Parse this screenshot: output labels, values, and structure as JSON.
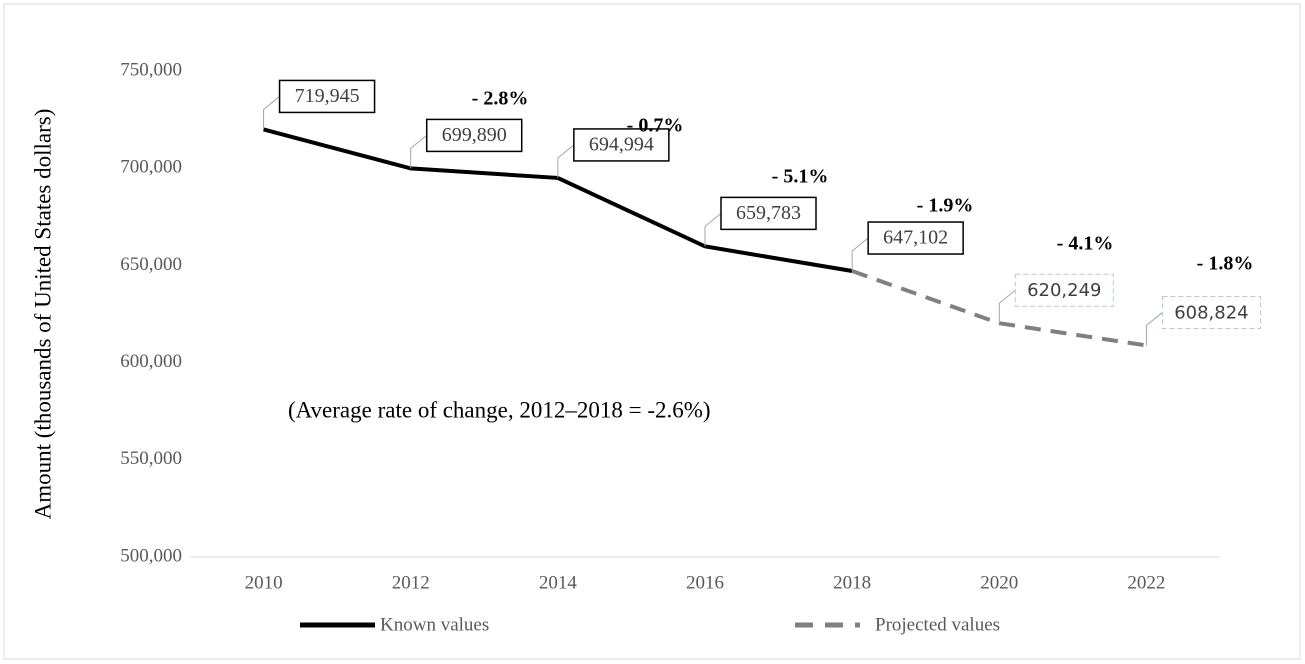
{
  "chart_data": {
    "type": "line",
    "y_label": "Amount (thousands of United States dollars)",
    "categories": [
      "2010",
      "2012",
      "2014",
      "2016",
      "2018",
      "2020",
      "2022"
    ],
    "series": [
      {
        "name": "Known values",
        "color": "#000000",
        "dashed": false,
        "values": [
          719945,
          699890,
          694994,
          659783,
          647102,
          null,
          null
        ],
        "value_labels": [
          "719,945",
          "699,890",
          "694,994",
          "659,783",
          "647,102",
          null,
          null
        ]
      },
      {
        "name": "Projected values",
        "color": "#808080",
        "dashed": true,
        "values": [
          null,
          null,
          null,
          null,
          647102,
          620249,
          608824
        ],
        "value_labels": [
          null,
          null,
          null,
          null,
          null,
          "620,249",
          "608,824"
        ]
      }
    ],
    "ylim": [
      500000,
      750000
    ],
    "yticks": [
      {
        "value": 500000,
        "label": "500,000"
      },
      {
        "value": 550000,
        "label": "550,000"
      },
      {
        "value": 600000,
        "label": "600,000"
      },
      {
        "value": 650000,
        "label": "650,000"
      },
      {
        "value": 700000,
        "label": "700,000"
      },
      {
        "value": 750000,
        "label": "750,000"
      }
    ],
    "annotations": [
      "- 2.8%",
      "- 0.7%",
      "- 5.1%",
      "- 1.9%",
      "- 4.1%",
      "- 1.8%",
      "(Average rate of change, 2012–2018 = -2.6%)"
    ],
    "legend": "bottom"
  }
}
